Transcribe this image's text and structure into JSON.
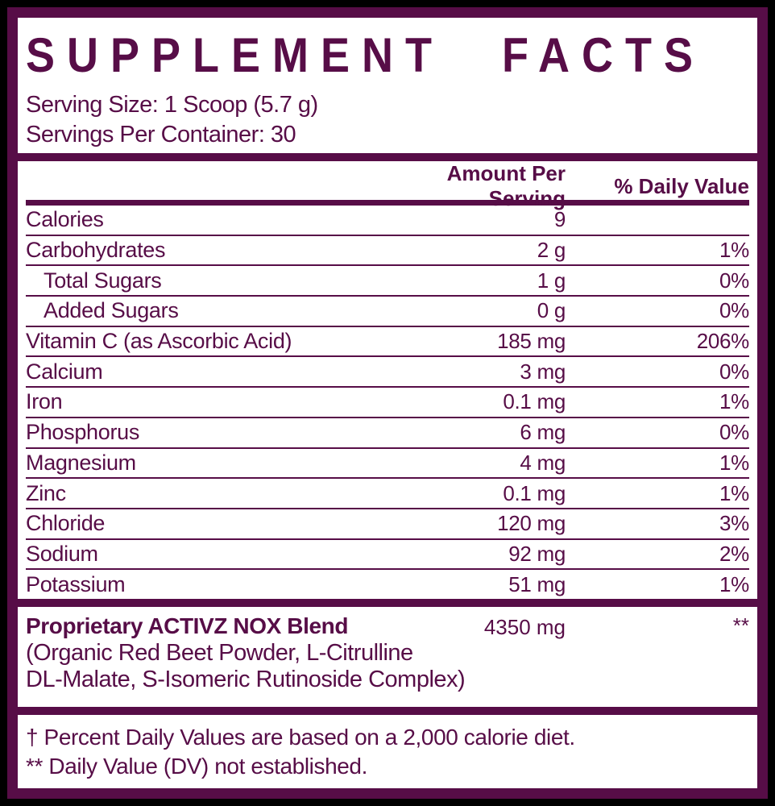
{
  "label": {
    "title": "SUPPLEMENT FACTS",
    "serving_size": "Serving Size: 1 Scoop (5.7 g)",
    "servings_per_container": "Servings Per Container: 30",
    "columns": {
      "amount": "Amount Per Serving",
      "dv": "% Daily Value"
    },
    "rows": [
      {
        "name": "Calories",
        "amount": "9",
        "dv": ""
      },
      {
        "name": "Carbohydrates",
        "amount": "2 g",
        "dv": "1%"
      },
      {
        "name": "Total Sugars",
        "amount": "1 g",
        "dv": "0%"
      },
      {
        "name": "Added Sugars",
        "amount": "0 g",
        "dv": "0%"
      },
      {
        "name": "Vitamin C (as Ascorbic Acid)",
        "amount": "185 mg",
        "dv": "206%"
      },
      {
        "name": "Calcium",
        "amount": "3 mg",
        "dv": "0%"
      },
      {
        "name": "Iron",
        "amount": "0.1 mg",
        "dv": "1%"
      },
      {
        "name": "Phosphorus",
        "amount": "6 mg",
        "dv": "0%"
      },
      {
        "name": "Magnesium",
        "amount": "4 mg",
        "dv": "1%"
      },
      {
        "name": "Zinc",
        "amount": "0.1 mg",
        "dv": "1%"
      },
      {
        "name": "Chloride",
        "amount": "120 mg",
        "dv": "3%"
      },
      {
        "name": "Sodium",
        "amount": "92 mg",
        "dv": "2%"
      },
      {
        "name": "Potassium",
        "amount": "51 mg",
        "dv": "1%"
      }
    ],
    "blend": {
      "name": "Proprietary ACTIVZ NOX Blend",
      "amount": "4350 mg",
      "dv": "**",
      "description_line1": "(Organic Red Beet Powder, L-Citrulline",
      "description_line2": "DL-Malate, S-Isomeric Rutinoside Complex)"
    },
    "footnotes": {
      "daily_value": "† Percent Daily Values are based on a 2,000 calorie diet.",
      "not_established": "** Daily Value (DV) not established."
    },
    "colors": {
      "accent": "#570D47",
      "panel": "#ffffff",
      "background": "#000000"
    }
  }
}
